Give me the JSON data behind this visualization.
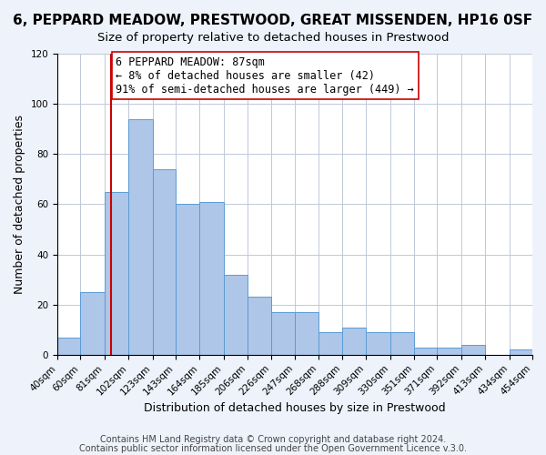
{
  "title": "6, PEPPARD MEADOW, PRESTWOOD, GREAT MISSENDEN, HP16 0SF",
  "subtitle": "Size of property relative to detached houses in Prestwood",
  "xlabel": "Distribution of detached houses by size in Prestwood",
  "ylabel": "Number of detached properties",
  "bin_edges": [
    40,
    60,
    81,
    102,
    123,
    143,
    164,
    185,
    206,
    226,
    247,
    268,
    288,
    309,
    330,
    351,
    371,
    392,
    413,
    434,
    454
  ],
  "bin_labels": [
    "40sqm",
    "60sqm",
    "81sqm",
    "102sqm",
    "123sqm",
    "143sqm",
    "164sqm",
    "185sqm",
    "206sqm",
    "226sqm",
    "247sqm",
    "268sqm",
    "288sqm",
    "309sqm",
    "330sqm",
    "351sqm",
    "371sqm",
    "392sqm",
    "413sqm",
    "434sqm",
    "454sqm"
  ],
  "bar_heights": [
    7,
    25,
    65,
    94,
    74,
    60,
    61,
    32,
    23,
    17,
    17,
    9,
    11,
    9,
    9,
    3,
    3,
    4,
    0,
    2
  ],
  "bar_color": "#aec6e8",
  "bar_edge_color": "#5b9bd5",
  "ylim": [
    0,
    120
  ],
  "yticks": [
    0,
    20,
    40,
    60,
    80,
    100,
    120
  ],
  "property_line_x": 87,
  "property_line_color": "#cc0000",
  "annotation_text": "6 PEPPARD MEADOW: 87sqm\n← 8% of detached houses are smaller (42)\n91% of semi-detached houses are larger (449) →",
  "annotation_box_color": "#ffffff",
  "annotation_box_edge_color": "#cc0000",
  "footer1": "Contains HM Land Registry data © Crown copyright and database right 2024.",
  "footer2": "Contains public sector information licensed under the Open Government Licence v.3.0.",
  "background_color": "#eef2fb",
  "plot_background_color": "#ffffff",
  "title_fontsize": 11,
  "subtitle_fontsize": 9.5,
  "axis_label_fontsize": 9,
  "tick_fontsize": 7.5,
  "footer_fontsize": 7,
  "annotation_fontsize": 8.5
}
